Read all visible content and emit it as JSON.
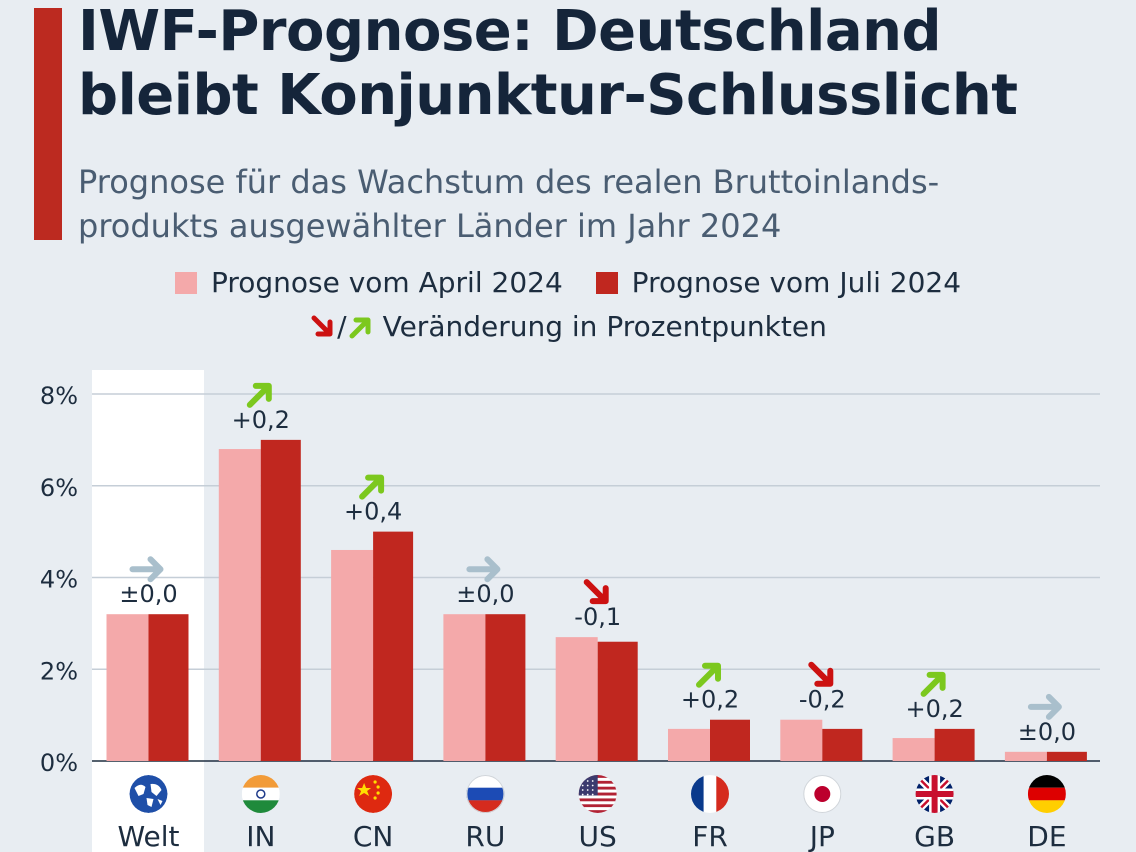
{
  "header": {
    "title_line1": "IWF-Prognose: Deutschland",
    "title_line2": "bleibt Konjunktur-Schlusslicht",
    "subtitle_line1": "Prognose für das Wachstum des realen Bruttoinlands-",
    "subtitle_line2": "produkts ausgewählter Länder im Jahr 2024"
  },
  "legend": {
    "april": "Prognose vom April 2024",
    "july": "Prognose vom Juli 2024",
    "change_slash": "/",
    "change": "Veränderung in Prozentpunkten"
  },
  "colors": {
    "april": "#f4a9aa",
    "july": "#c0271f",
    "up": "#7cc81e",
    "down": "#cc1111",
    "flat": "#a9bfcc",
    "accent": "#bc2a20"
  },
  "chart_data": {
    "type": "bar",
    "title": "IWF-Prognose: Deutschland bleibt Konjunktur-Schlusslicht",
    "ylabel": "",
    "xlabel": "",
    "ylim": [
      0,
      8
    ],
    "yticks": [
      0,
      2,
      4,
      6,
      8
    ],
    "ytick_labels": [
      "0%",
      "2%",
      "4%",
      "6%",
      "8%"
    ],
    "categories": [
      "Welt",
      "IN",
      "CN",
      "RU",
      "US",
      "FR",
      "JP",
      "GB",
      "DE"
    ],
    "flag_icons": [
      "globe-icon",
      "india-flag-icon",
      "china-flag-icon",
      "russia-flag-icon",
      "us-flag-icon",
      "france-flag-icon",
      "japan-flag-icon",
      "uk-flag-icon",
      "germany-flag-icon"
    ],
    "series": [
      {
        "name": "Prognose vom April 2024",
        "values": [
          3.2,
          6.8,
          4.6,
          3.2,
          2.7,
          0.7,
          0.9,
          0.5,
          0.2
        ]
      },
      {
        "name": "Prognose vom Juli 2024",
        "values": [
          3.2,
          7.0,
          5.0,
          3.2,
          2.6,
          0.9,
          0.7,
          0.7,
          0.2
        ]
      }
    ],
    "changes": [
      "±0,0",
      "+0,2",
      "+0,4",
      "±0,0",
      "-0,1",
      "+0,2",
      "-0,2",
      "+0,2",
      "±0,0"
    ],
    "change_direction": [
      "flat",
      "up",
      "up",
      "flat",
      "down",
      "up",
      "down",
      "up",
      "flat"
    ],
    "highlight_category": "Welt"
  }
}
